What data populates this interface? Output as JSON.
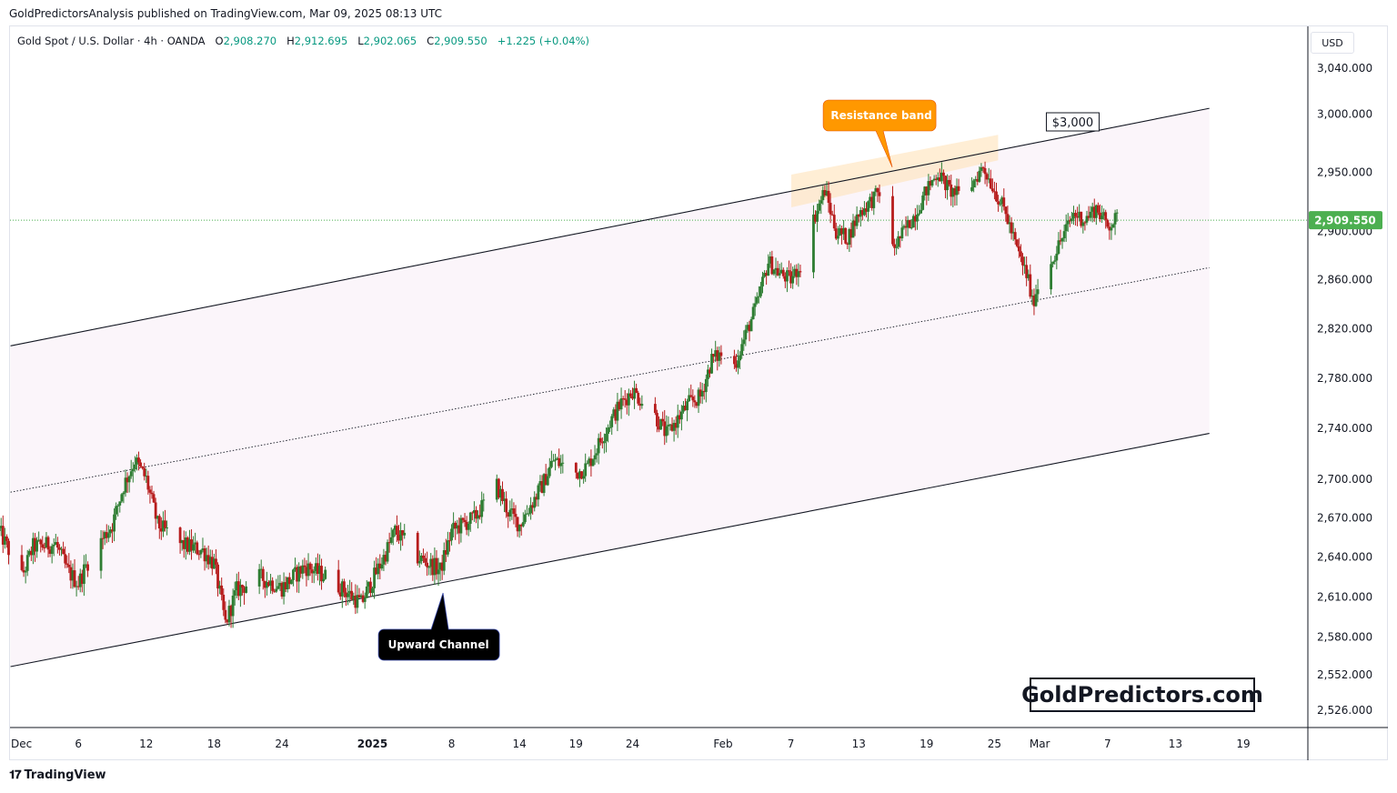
{
  "header": {
    "published_by": "GoldPredictorsAnalysis published on TradingView.com, Mar 09, 2025 08:13 UTC"
  },
  "legend": {
    "symbol": "Gold Spot / U.S. Dollar · 4h · OANDA",
    "open_label": "O",
    "open": "2,908.270",
    "high_label": "H",
    "high": "2,912.695",
    "low_label": "L",
    "low": "2,902.065",
    "close_label": "C",
    "close": "2,909.550",
    "change": "+1.225 (+0.04%)"
  },
  "currency": "USD",
  "footer": {
    "brand": "TradingView",
    "icon": "tradingview-logo-icon"
  },
  "watermark": "GoldPredictors.com",
  "colors": {
    "up": "#089981",
    "down": "#f23645",
    "up_candle": "#2e7d32",
    "down_candle": "#b71c1c",
    "price_label_bg": "#4caf50",
    "resistance_callout": "#ff9800",
    "channel_callout": "#000000"
  },
  "chart_data": {
    "type": "candlestick",
    "title": "Gold Spot / U.S. Dollar · 4h · OANDA",
    "interval": "4h",
    "xlabel": "",
    "ylabel": "",
    "x_tick_labels": [
      "Dec",
      "6",
      "12",
      "18",
      "24",
      "2025",
      "8",
      "14",
      "19",
      "24",
      "Feb",
      "7",
      "13",
      "19",
      "25",
      "Mar",
      "7",
      "13",
      "19"
    ],
    "x_tick_dates": [
      "2024-12-01",
      "2024-12-06",
      "2024-12-12",
      "2024-12-18",
      "2024-12-24",
      "2025-01-01",
      "2025-01-08",
      "2025-01-14",
      "2025-01-19",
      "2025-01-24",
      "2025-02-01",
      "2025-02-07",
      "2025-02-13",
      "2025-02-19",
      "2025-02-25",
      "2025-03-01",
      "2025-03-07",
      "2025-03-13",
      "2025-03-19"
    ],
    "y_tick_labels": [
      "3,040.000",
      "3,000.000",
      "2,950.000",
      "2,900.000",
      "2,860.000",
      "2,820.000",
      "2,780.000",
      "2,740.000",
      "2,700.000",
      "2,670.000",
      "2,640.000",
      "2,610.000",
      "2,580.000",
      "2,552.000",
      "2,526.000"
    ],
    "y_scale": "log",
    "ylim": [
      2506,
      3078
    ],
    "last_price": 2909.55,
    "last_price_label": "2,909.550",
    "grid": false,
    "price_path": [
      [
        "2024-11-29",
        2660
      ],
      [
        "2024-12-01",
        2625
      ],
      [
        "2024-12-02",
        2648
      ],
      [
        "2024-12-04",
        2650
      ],
      [
        "2024-12-05",
        2630
      ],
      [
        "2024-12-06",
        2620
      ],
      [
        "2024-12-07",
        2640
      ],
      [
        "2024-12-09",
        2665
      ],
      [
        "2024-12-10",
        2695
      ],
      [
        "2024-12-11",
        2715
      ],
      [
        "2024-12-12",
        2700
      ],
      [
        "2024-12-13",
        2665
      ],
      [
        "2024-12-15",
        2650
      ],
      [
        "2024-12-17",
        2645
      ],
      [
        "2024-12-18",
        2635
      ],
      [
        "2024-12-19",
        2590
      ],
      [
        "2024-12-20",
        2615
      ],
      [
        "2024-12-22",
        2625
      ],
      [
        "2024-12-24",
        2617
      ],
      [
        "2024-12-26",
        2633
      ],
      [
        "2024-12-28",
        2625
      ],
      [
        "2024-12-31",
        2605
      ],
      [
        "2025-01-02",
        2640
      ],
      [
        "2025-01-03",
        2660
      ],
      [
        "2025-01-05",
        2640
      ],
      [
        "2025-01-07",
        2630
      ],
      [
        "2025-01-08",
        2660
      ],
      [
        "2025-01-10",
        2670
      ],
      [
        "2025-01-12",
        2695
      ],
      [
        "2025-01-13",
        2675
      ],
      [
        "2025-01-14",
        2665
      ],
      [
        "2025-01-16",
        2695
      ],
      [
        "2025-01-17",
        2715
      ],
      [
        "2025-01-19",
        2705
      ],
      [
        "2025-01-20",
        2710
      ],
      [
        "2025-01-22",
        2745
      ],
      [
        "2025-01-23",
        2760
      ],
      [
        "2025-01-24",
        2770
      ],
      [
        "2025-01-26",
        2750
      ],
      [
        "2025-01-27",
        2735
      ],
      [
        "2025-01-29",
        2760
      ],
      [
        "2025-01-30",
        2765
      ],
      [
        "2025-01-31",
        2795
      ],
      [
        "2025-02-01",
        2800
      ],
      [
        "2025-02-02",
        2790
      ],
      [
        "2025-02-03",
        2815
      ],
      [
        "2025-02-04",
        2840
      ],
      [
        "2025-02-05",
        2875
      ],
      [
        "2025-02-06",
        2865
      ],
      [
        "2025-02-07",
        2860
      ],
      [
        "2025-02-08",
        2875
      ],
      [
        "2025-02-09",
        2910
      ],
      [
        "2025-02-10",
        2935
      ],
      [
        "2025-02-11",
        2900
      ],
      [
        "2025-02-12",
        2895
      ],
      [
        "2025-02-13",
        2915
      ],
      [
        "2025-02-15",
        2935
      ],
      [
        "2025-02-16",
        2885
      ],
      [
        "2025-02-17",
        2900
      ],
      [
        "2025-02-18",
        2915
      ],
      [
        "2025-02-19",
        2935
      ],
      [
        "2025-02-20",
        2950
      ],
      [
        "2025-02-21",
        2935
      ],
      [
        "2025-02-22",
        2930
      ],
      [
        "2025-02-23",
        2940
      ],
      [
        "2025-02-24",
        2955
      ],
      [
        "2025-02-25",
        2935
      ],
      [
        "2025-02-26",
        2915
      ],
      [
        "2025-02-27",
        2885
      ],
      [
        "2025-02-28",
        2860
      ],
      [
        "2025-02-28",
        2840
      ],
      [
        "2025-03-01",
        2860
      ],
      [
        "2025-03-02",
        2875
      ],
      [
        "2025-03-03",
        2895
      ],
      [
        "2025-03-04",
        2915
      ],
      [
        "2025-03-05",
        2910
      ],
      [
        "2025-03-06",
        2920
      ],
      [
        "2025-03-07",
        2905
      ],
      [
        "2025-03-08",
        2912
      ],
      [
        "2025-03-08",
        2909.55
      ]
    ],
    "annotations": [
      {
        "type": "trendline",
        "name": "channel-upper",
        "from": [
          "2024-11-30",
          2806
        ],
        "to": [
          "2025-03-16",
          3005
        ]
      },
      {
        "type": "trendline",
        "name": "channel-middle",
        "from": [
          "2024-11-30",
          2690
        ],
        "to": [
          "2025-03-16",
          2870
        ]
      },
      {
        "type": "trendline",
        "name": "channel-lower",
        "from": [
          "2024-11-30",
          2558
        ],
        "to": [
          "2025-03-16",
          2736
        ]
      },
      {
        "type": "callout",
        "text": "Resistance band",
        "at": [
          "2025-02-15",
          2954
        ]
      },
      {
        "type": "callout",
        "text": "Upward Channel",
        "at": [
          "2025-01-07",
          2612
        ]
      },
      {
        "type": "label",
        "text": "$3,000",
        "at": [
          "2025-03-04",
          2994
        ]
      },
      {
        "type": "band",
        "name": "resistance-band",
        "from": [
          "2025-02-08",
          2945
        ],
        "to": [
          "2025-02-25",
          2965
        ]
      }
    ]
  }
}
